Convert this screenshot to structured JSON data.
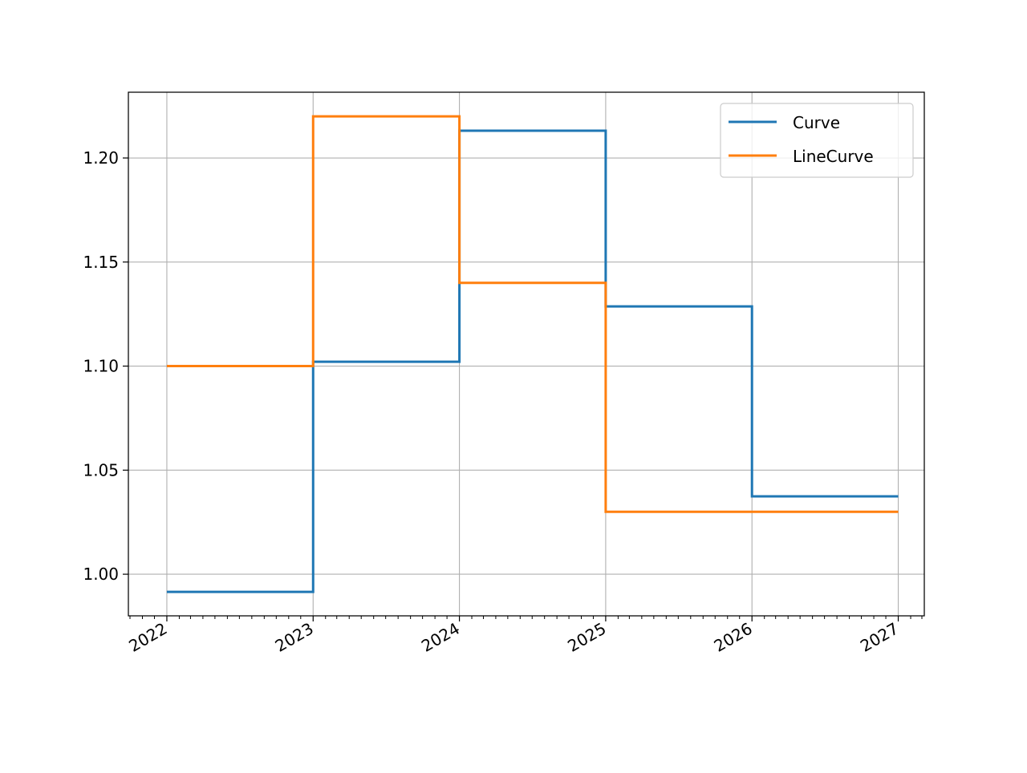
{
  "chart_data": {
    "type": "line",
    "drawstyle": "steps-post",
    "title": "",
    "xlabel": "",
    "ylabel": "",
    "x": [
      "2022-01-01",
      "2023-01-01",
      "2024-01-01",
      "2025-01-01",
      "2026-01-01",
      "2027-01-01"
    ],
    "x_ticks": [
      "2022",
      "2023",
      "2024",
      "2025",
      "2026",
      "2027"
    ],
    "x_minor_ticks": "monthly",
    "xlim": [
      "2021-09-27",
      "2027-03-07"
    ],
    "ylim": [
      0.98,
      1.2316
    ],
    "y_ticks": [
      "1.00",
      "1.05",
      "1.10",
      "1.15",
      "1.20"
    ],
    "grid": true,
    "legend": "top-right",
    "series": [
      {
        "name": "Curve",
        "color": "#1f77b4",
        "values": [
          0.9915,
          1.1021,
          1.2131,
          1.1287,
          1.0374,
          1.0374
        ]
      },
      {
        "name": "LineCurve",
        "color": "#ff7f0e",
        "values": [
          1.1,
          1.22,
          1.14,
          1.03,
          1.03,
          1.03
        ]
      }
    ]
  }
}
